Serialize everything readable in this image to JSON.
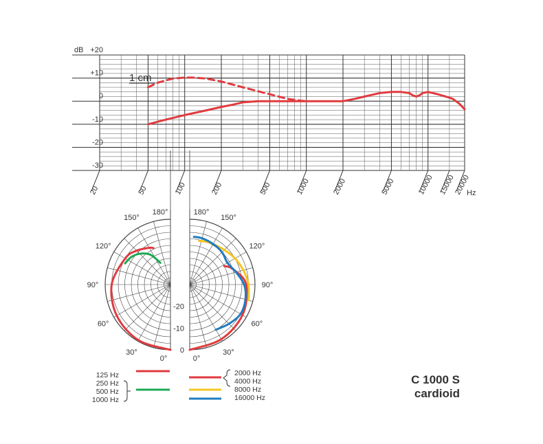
{
  "chart_data": [
    {
      "type": "line",
      "x_scale": "log",
      "xlim": [
        20,
        20000
      ],
      "ylim": [
        -30,
        20
      ],
      "yunit": "dB",
      "xunit": "Hz",
      "y_ticks": [
        "+20",
        "+10",
        "0",
        "-10",
        "-20",
        "-30"
      ],
      "x_ticks": [
        "20",
        "50",
        "100",
        "200",
        "500",
        "1000",
        "2000",
        "5000",
        "10000",
        "15000",
        "20000"
      ],
      "grid": true,
      "annotation": "1 cm",
      "series": [
        {
          "style": "dashed",
          "color": "#e03a3e",
          "x": [
            50,
            60,
            70,
            80,
            90,
            100,
            120,
            150,
            200,
            300,
            500,
            700,
            900,
            1000
          ],
          "y": [
            6,
            8,
            9,
            9.8,
            10,
            10.2,
            10.2,
            9.8,
            8.5,
            6,
            3,
            1,
            0.2,
            0
          ]
        },
        {
          "style": "solid",
          "color": "#e03a3e",
          "x": [
            50,
            70,
            100,
            150,
            200,
            250,
            300,
            400,
            500,
            1000,
            2000,
            2500,
            3000,
            4000,
            5000,
            6000,
            7000,
            7500,
            8000,
            8500,
            9000,
            10000,
            11000,
            12000,
            14000,
            16000,
            18000,
            20000
          ],
          "y": [
            -10,
            -8,
            -6,
            -4,
            -2.5,
            -1.5,
            -0.5,
            0,
            0,
            0,
            0,
            1,
            2,
            3.5,
            4,
            4,
            3.5,
            2.5,
            2,
            2.5,
            3.5,
            4,
            3.5,
            3,
            2,
            1,
            -1,
            -3.5
          ]
        }
      ]
    },
    {
      "type": "polar",
      "rlim": [
        -30,
        0
      ],
      "r_labels": [
        "-20",
        "-10",
        "0"
      ],
      "angle_labels_left": [
        "180°",
        "150°",
        "120°",
        "90°",
        "60°",
        "30°",
        "0°"
      ],
      "angle_labels_right": [
        "180°",
        "150°",
        "120°",
        "90°",
        "60°",
        "30°",
        "0°"
      ],
      "series": [
        {
          "side": "left",
          "color": "#e03a3e",
          "legend": "125 Hz / 1000 Hz",
          "angles": [
            0,
            30,
            60,
            90,
            120,
            135,
            150,
            155
          ],
          "values": [
            0,
            -0.5,
            -1.5,
            -3,
            -6,
            -8,
            -10.5,
            -11.5
          ]
        },
        {
          "side": "left",
          "color": "#1ea955",
          "legend": "250 Hz / 500 Hz",
          "angles": [
            115,
            125,
            135,
            145,
            150,
            155
          ],
          "values": [
            -7,
            -8,
            -10,
            -13,
            -16,
            -19
          ]
        },
        {
          "side": "right",
          "color": "#e03a3e",
          "legend": "2000 Hz / 4000 Hz",
          "angles": [
            0,
            30,
            60,
            90,
            110,
            118
          ],
          "values": [
            0,
            -1,
            -2,
            -4,
            -9,
            -12
          ]
        },
        {
          "side": "right",
          "color": "#f7c520",
          "legend": "8000 Hz",
          "angles": [
            75,
            90,
            105,
            120,
            135,
            150,
            160,
            168
          ],
          "values": [
            -2,
            -3,
            -4.5,
            -6,
            -7.5,
            -8.5,
            -9,
            -9.5
          ]
        },
        {
          "side": "right",
          "color": "#1f7cc1",
          "legend": "16000 Hz",
          "angles": [
            30,
            45,
            60,
            75,
            90,
            105,
            120,
            135,
            150,
            165,
            175
          ],
          "values": [
            -6,
            -4.5,
            -3,
            -3.5,
            -5,
            -8,
            -10,
            -9,
            -8.5,
            -8,
            -8
          ]
        }
      ]
    }
  ],
  "legend": {
    "left": {
      "items": [
        "125 Hz",
        "250 Hz",
        "500 Hz",
        "1000 Hz"
      ],
      "swatches": [
        {
          "color": "#e03a3e"
        },
        {
          "color": "#1ea955"
        }
      ]
    },
    "right": {
      "items": [
        "2000 Hz",
        "4000 Hz",
        "8000 Hz",
        "16000 Hz"
      ],
      "swatches": [
        {
          "color": "#e03a3e"
        },
        {
          "color": "#f7c520"
        },
        {
          "color": "#1f7cc1"
        }
      ]
    }
  },
  "model": {
    "name": "C 1000 S",
    "pattern": "cardioid"
  }
}
